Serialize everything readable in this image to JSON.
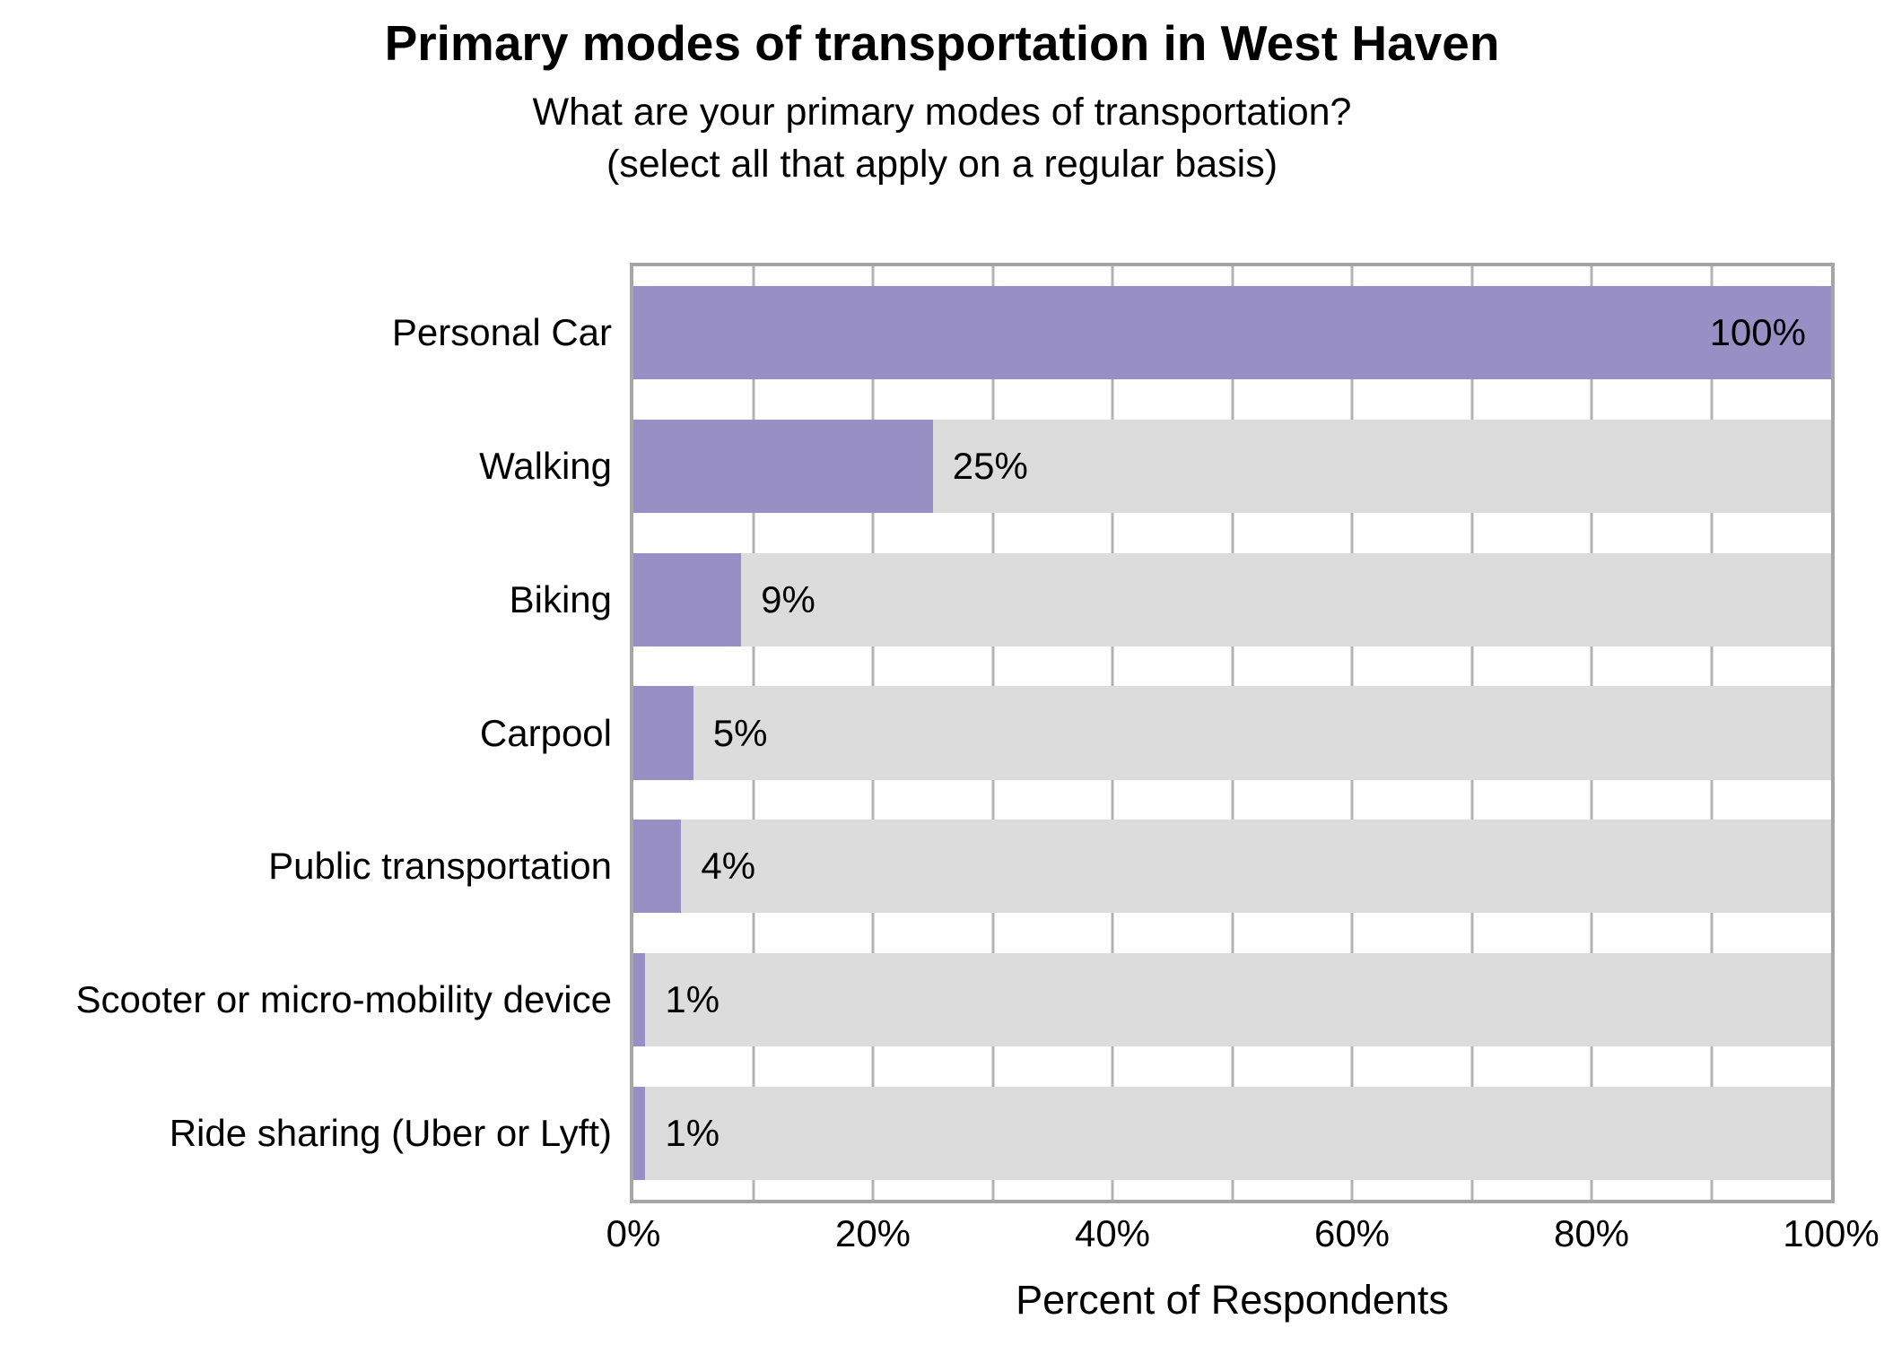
{
  "chart_data": {
    "type": "bar",
    "orientation": "horizontal",
    "title": "Primary modes of transportation in West Haven",
    "subtitle_lines": [
      "What are your primary modes of transportation?",
      "(select all that apply on a regular basis)"
    ],
    "xlabel": "Percent of Respondents",
    "ylabel": "",
    "categories": [
      "Personal Car",
      "Walking",
      "Biking",
      "Carpool",
      "Public transportation",
      "Scooter or micro-mobility device",
      "Ride sharing (Uber or Lyft)"
    ],
    "values": [
      100,
      25,
      9,
      5,
      4,
      1,
      1
    ],
    "value_labels": [
      "100%",
      "25%",
      "9%",
      "5%",
      "4%",
      "1%",
      "1%"
    ],
    "xlim": [
      0,
      100
    ],
    "grid_step": 10,
    "tick_step": 20,
    "tick_labels": [
      "0%",
      "20%",
      "40%",
      "60%",
      "80%",
      "100%"
    ],
    "legend": "none",
    "grid": "vertical",
    "colors": {
      "bar": "#988FC4",
      "track": "#DCDCDC",
      "gridline": "#B3B3B3",
      "plot_border": "#A6A6A6",
      "text": "#000000",
      "background": "#FFFFFF"
    }
  }
}
